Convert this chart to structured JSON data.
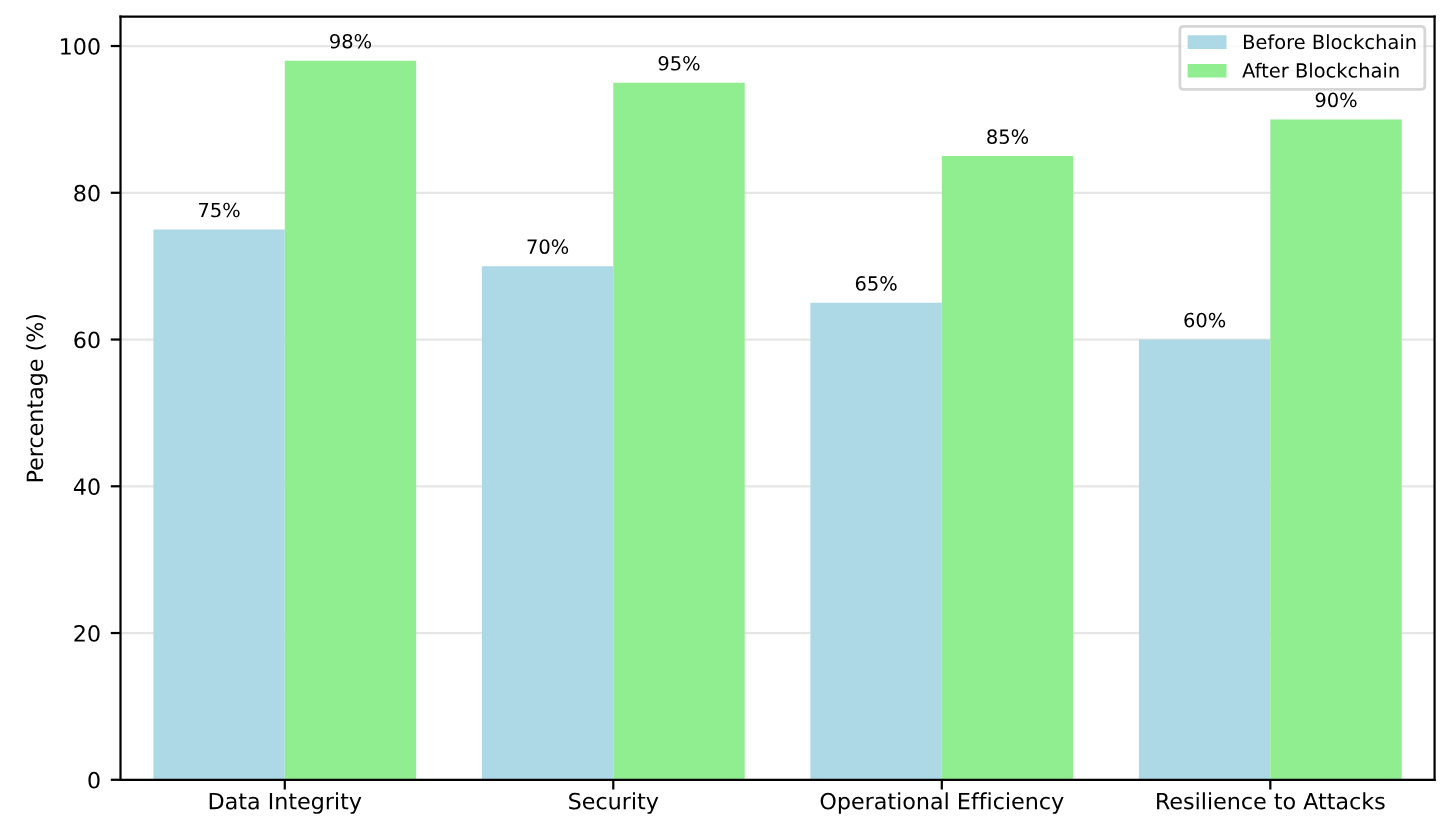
{
  "chart_data": {
    "type": "bar",
    "ylabel": "Percentage (%)",
    "categories": [
      "Data Integrity",
      "Security",
      "Operational Efficiency",
      "Resilience to Attacks"
    ],
    "series": [
      {
        "name": "Before Blockchain",
        "color": "#add8e6",
        "values": [
          75,
          70,
          65,
          60
        ],
        "value_labels": [
          "75%",
          "70%",
          "65%",
          "60%"
        ]
      },
      {
        "name": "After Blockchain",
        "color": "#90ee90",
        "values": [
          98,
          95,
          85,
          90
        ],
        "value_labels": [
          "98%",
          "95%",
          "85%",
          "90%"
        ]
      }
    ],
    "ylim": [
      0,
      104
    ],
    "yticks": [
      0,
      20,
      40,
      60,
      80,
      100
    ],
    "grid": "y",
    "legend": "top right"
  }
}
